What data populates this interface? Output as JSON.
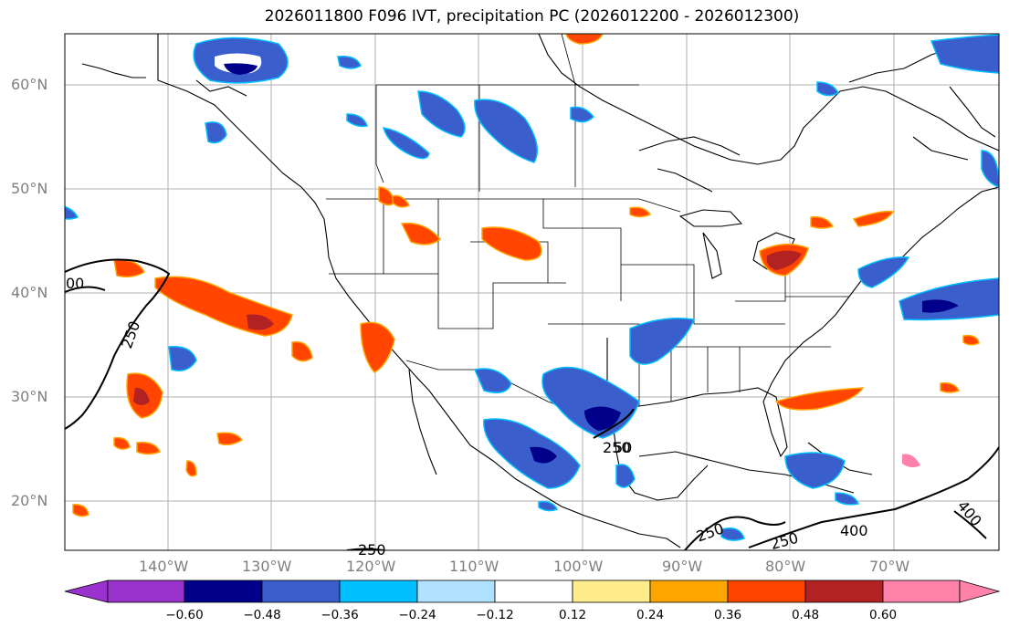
{
  "title": "2026011800 F096 IVT, precipitation PC (2026012200 - 2026012300)",
  "lat_labels": [
    "60°N",
    "50°N",
    "40°N",
    "30°N",
    "20°N"
  ],
  "lon_labels": [
    "140°W",
    "130°W",
    "120°W",
    "110°W",
    "100°W",
    "90°W",
    "80°W",
    "70°W"
  ],
  "contour_labels": [
    "250",
    "250",
    "250",
    "250",
    "250",
    "400",
    "400",
    "00",
    "50"
  ],
  "colorbar": {
    "ticks": [
      "−0.60",
      "−0.48",
      "−0.36",
      "−0.24",
      "−0.12",
      "0.12",
      "0.24",
      "0.36",
      "0.48",
      "0.60"
    ],
    "colors": [
      "#9a32cd",
      "#00008b",
      "#3a5fcd",
      "#00bfff",
      "#b0e2ff",
      "#ffffff",
      "#ffec8b",
      "#ffa500",
      "#ff4500",
      "#b22222",
      "#ff82ab"
    ]
  }
}
